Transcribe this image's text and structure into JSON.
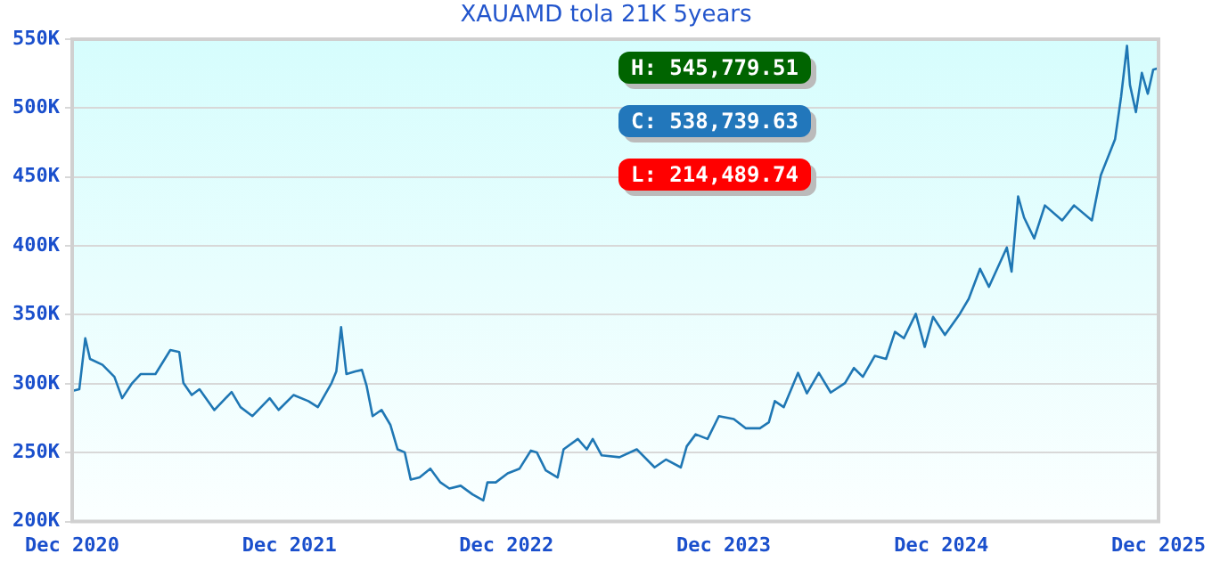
{
  "chart_data": {
    "type": "line",
    "title": "XAUAMD tola 21K 5years",
    "x": [
      "2020-12-01",
      "2020-12-13",
      "2020-12-23",
      "2020-12-31",
      "2021-01-21",
      "2021-02-10",
      "2021-02-23",
      "2021-03-12",
      "2021-03-26",
      "2021-04-20",
      "2021-05-15",
      "2021-05-30",
      "2021-06-06",
      "2021-06-20",
      "2021-07-03",
      "2021-07-28",
      "2021-08-26",
      "2021-09-10",
      "2021-09-30",
      "2021-10-29",
      "2021-11-13",
      "2021-12-08",
      "2022-01-02",
      "2022-01-18",
      "2022-02-10",
      "2022-02-18",
      "2022-02-26",
      "2022-03-07",
      "2022-03-22",
      "2022-04-02",
      "2022-04-10",
      "2022-04-20",
      "2022-05-05",
      "2022-05-20",
      "2022-06-01",
      "2022-06-13",
      "2022-06-23",
      "2022-07-08",
      "2022-07-26",
      "2022-08-12",
      "2022-08-27",
      "2022-09-15",
      "2022-10-05",
      "2022-10-23",
      "2022-10-30",
      "2022-11-13",
      "2022-12-03",
      "2022-12-23",
      "2023-01-11",
      "2023-01-21",
      "2023-02-05",
      "2023-02-25",
      "2023-03-07",
      "2023-03-31",
      "2023-04-15",
      "2023-04-25",
      "2023-05-10",
      "2023-06-09",
      "2023-07-08",
      "2023-08-07",
      "2023-08-26",
      "2023-09-20",
      "2023-09-30",
      "2023-10-15",
      "2023-11-04",
      "2023-11-23",
      "2023-12-18",
      "2024-01-07",
      "2024-01-31",
      "2024-02-15",
      "2024-02-25",
      "2024-03-11",
      "2024-04-04",
      "2024-04-19",
      "2024-05-09",
      "2024-05-29",
      "2024-06-22",
      "2024-07-07",
      "2024-07-22",
      "2024-08-11",
      "2024-08-30",
      "2024-09-14",
      "2024-09-29",
      "2024-10-19",
      "2024-11-03",
      "2024-11-17",
      "2024-12-07",
      "2025-01-01",
      "2025-01-16",
      "2025-02-04",
      "2025-02-19",
      "2025-03-21",
      "2025-03-29",
      "2025-04-09",
      "2025-04-19",
      "2025-05-06",
      "2025-05-24",
      "2025-06-22",
      "2025-07-12",
      "2025-08-11",
      "2025-08-26",
      "2025-09-19",
      "2025-09-29",
      "2025-10-09",
      "2025-10-14",
      "2025-10-24",
      "2025-11-03",
      "2025-11-13",
      "2025-11-22",
      "2025-12-01"
    ],
    "series": [
      {
        "color": "#1f77b4",
        "values": [
          294800,
          296000,
          333000,
          318000,
          313700,
          305000,
          289500,
          300500,
          307000,
          307000,
          324500,
          323000,
          300500,
          291800,
          296000,
          280900,
          294000,
          283000,
          276500,
          289500,
          281000,
          291800,
          287400,
          283000,
          300500,
          309000,
          341000,
          307000,
          309000,
          310000,
          298300,
          276500,
          281000,
          270000,
          252400,
          250200,
          230500,
          232000,
          238400,
          228400,
          224000,
          226000,
          219700,
          215300,
          228400,
          228400,
          235000,
          238400,
          251500,
          250200,
          237100,
          232000,
          252400,
          259900,
          252400,
          259900,
          248000,
          246700,
          252400,
          239300,
          245000,
          239300,
          254600,
          263300,
          259900,
          276500,
          274400,
          267700,
          267700,
          272000,
          287400,
          283000,
          307900,
          293000,
          307900,
          293600,
          300500,
          311400,
          305000,
          320200,
          318000,
          337600,
          333000,
          350700,
          326700,
          348500,
          335400,
          350700,
          361600,
          383400,
          370300,
          398800,
          381300,
          435900,
          420600,
          405400,
          429400,
          418500,
          429400,
          418500,
          451300,
          477500,
          508000,
          545200,
          516800,
          497100,
          525600,
          510400,
          527800,
          529000
        ]
      }
    ],
    "xlim": [
      "2020-12-01",
      "2025-12-01"
    ],
    "xticks": [
      {
        "value": "2020-12-01",
        "label": "Dec 2020"
      },
      {
        "value": "2021-12-01",
        "label": "Dec 2021"
      },
      {
        "value": "2022-12-01",
        "label": "Dec 2022"
      },
      {
        "value": "2023-12-01",
        "label": "Dec 2023"
      },
      {
        "value": "2024-12-01",
        "label": "Dec 2024"
      },
      {
        "value": "2025-12-01",
        "label": "Dec 2025"
      }
    ],
    "ylim": [
      200000,
      550000
    ],
    "yticks": [
      {
        "value": 200000,
        "label": "200K"
      },
      {
        "value": 250000,
        "label": "250K"
      },
      {
        "value": 300000,
        "label": "300K"
      },
      {
        "value": 350000,
        "label": "350K"
      },
      {
        "value": 400000,
        "label": "400K"
      },
      {
        "value": 450000,
        "label": "450K"
      },
      {
        "value": 500000,
        "label": "500K"
      },
      {
        "value": 550000,
        "label": "550K"
      }
    ],
    "grid": "y",
    "legend": false,
    "marker": "none",
    "line_style": "solid",
    "annotations": [
      "H: 545,779.51",
      "C: 538,739.63",
      "L: 214,489.74"
    ]
  }
}
